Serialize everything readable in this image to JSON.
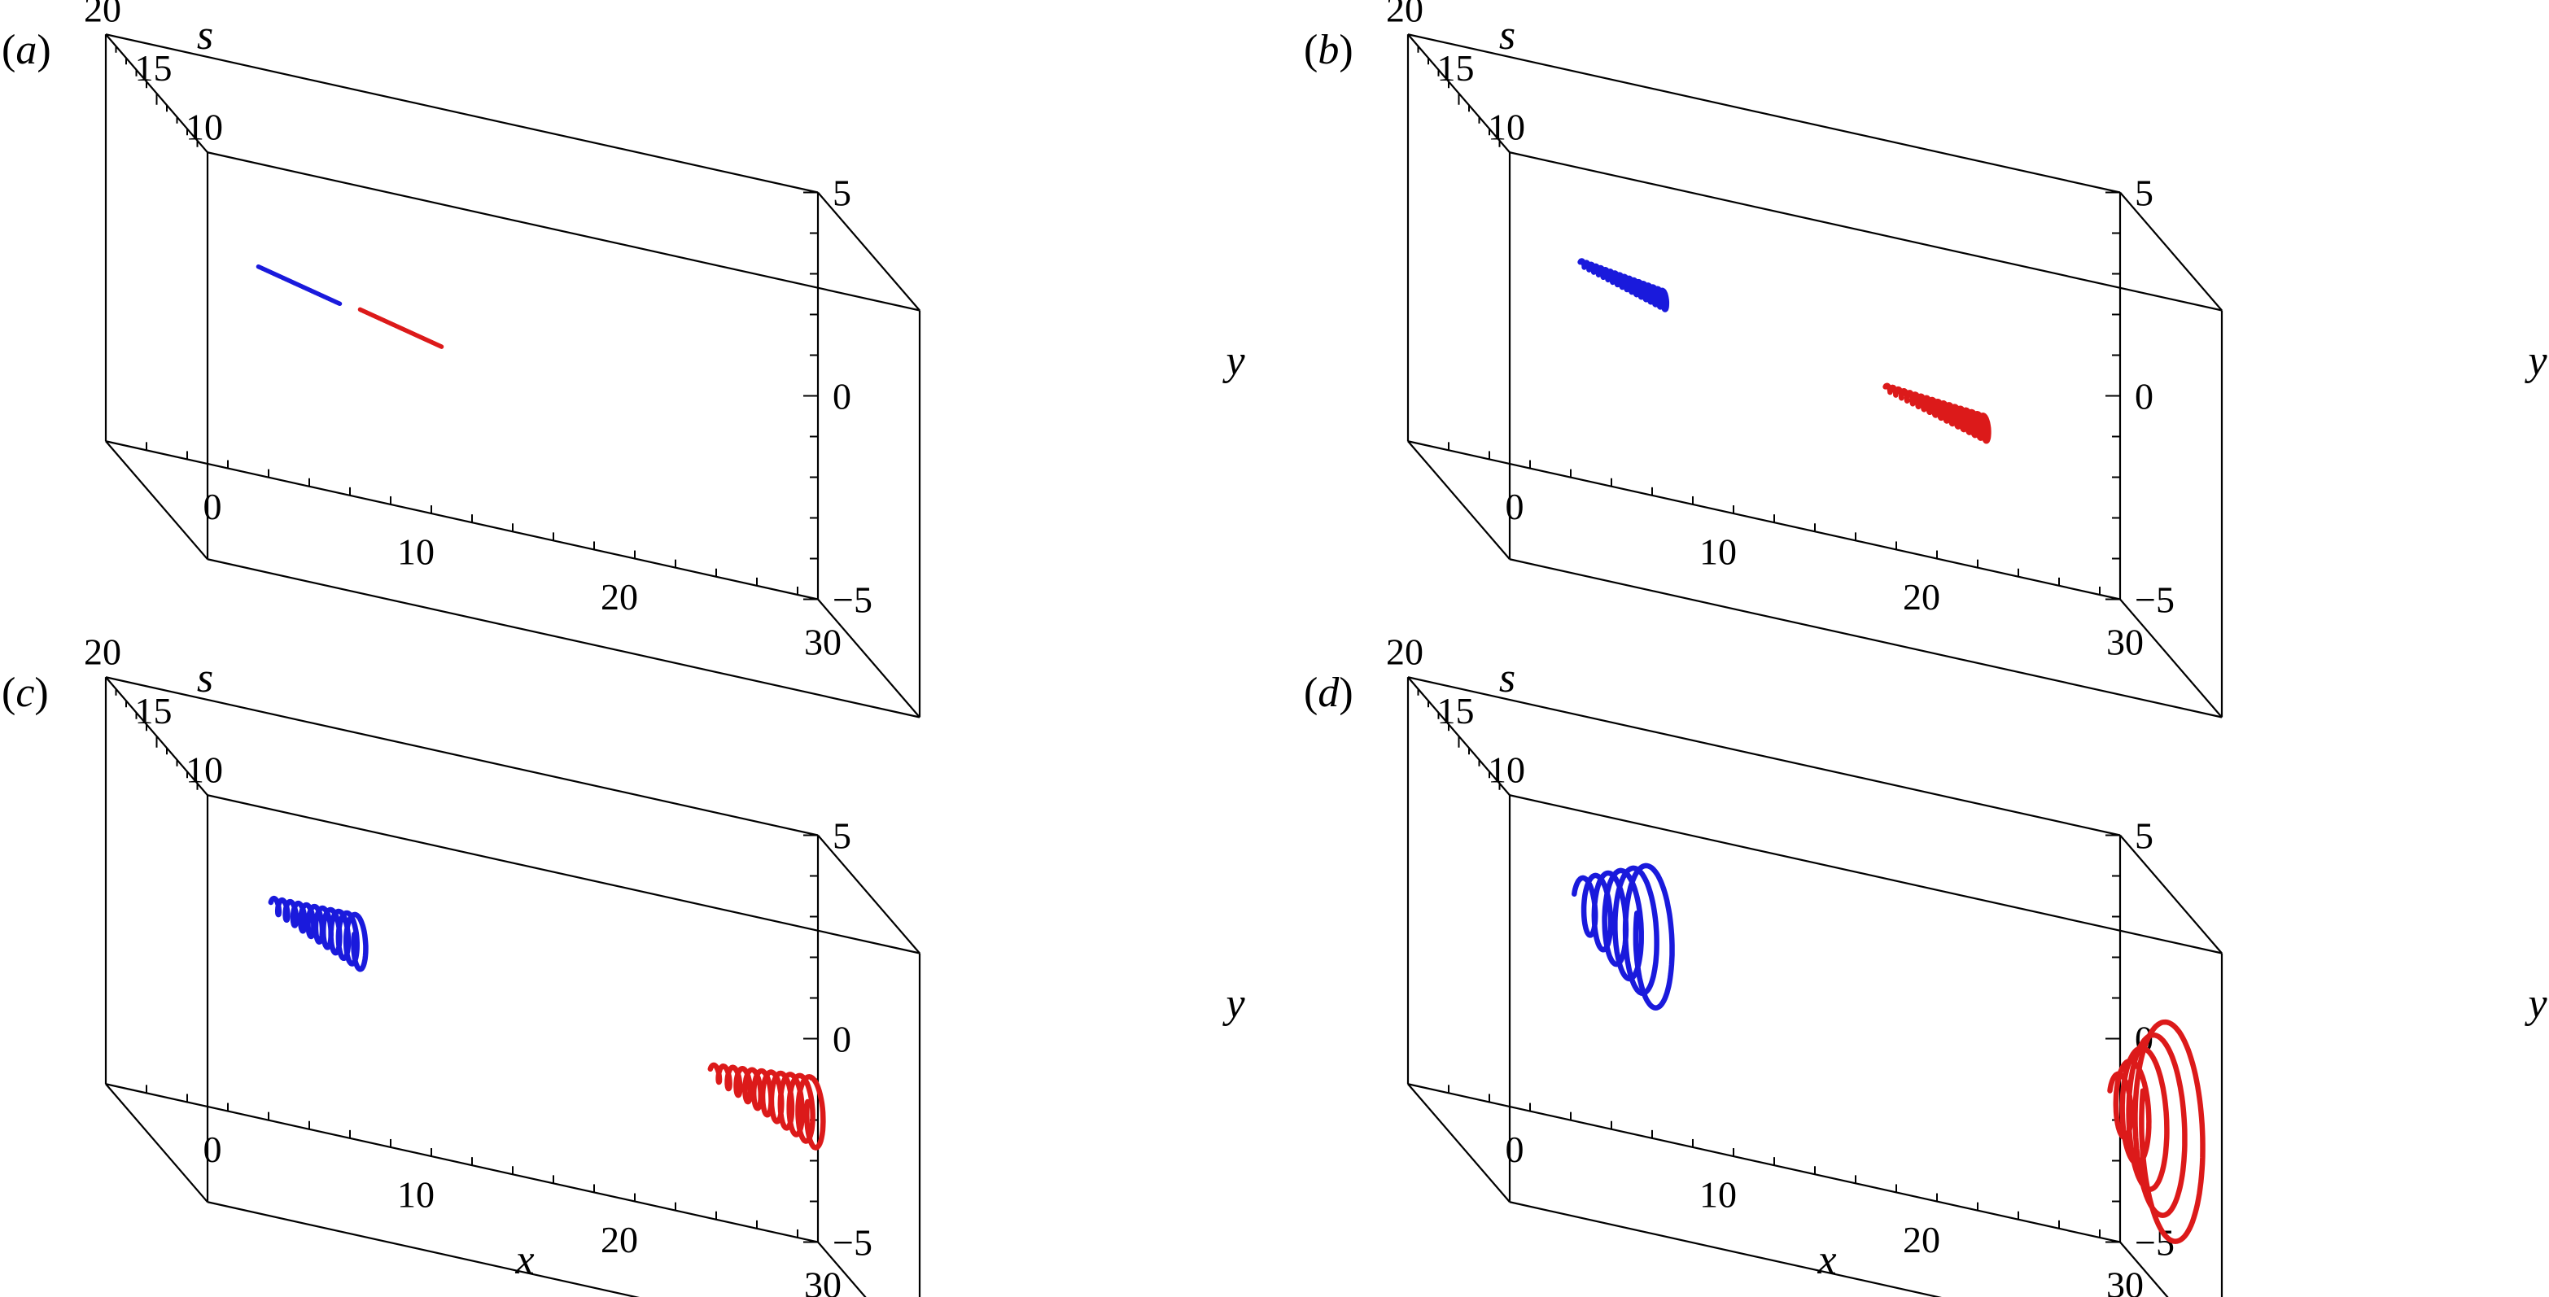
{
  "chart_data": [
    {
      "type": "line",
      "panel_label": "(a)",
      "axes": {
        "x": {
          "label": "",
          "range": [
            -5,
            30
          ],
          "ticks": [
            "0",
            "10",
            "20",
            "30"
          ]
        },
        "y": {
          "label": "y",
          "range": [
            -5,
            5
          ],
          "ticks": [
            "5",
            "0",
            "−5"
          ]
        },
        "s": {
          "label": "s",
          "range": [
            10,
            20
          ],
          "ticks": [
            "20",
            "15",
            "10"
          ]
        }
      },
      "series": [
        {
          "color": "#1a1adc",
          "start": {
            "x": -1.5,
            "s": 12.0,
            "y": 2.0
          },
          "end": {
            "x": 1.5,
            "s": 10.0,
            "y": 2.0
          },
          "radius_start": 0.0,
          "radius_end": 0.0,
          "turns": 0
        },
        {
          "color": "#dc1a1a",
          "start": {
            "x": 3.5,
            "s": 12.0,
            "y": 1.5
          },
          "end": {
            "x": 6.5,
            "s": 10.0,
            "y": 1.5
          },
          "radius_start": 0.0,
          "radius_end": 0.0,
          "turns": 0
        }
      ]
    },
    {
      "type": "line",
      "panel_label": "(b)",
      "axes": {
        "x": {
          "label": "",
          "range": [
            -5,
            30
          ],
          "ticks": [
            "0",
            "10",
            "20",
            "30"
          ]
        },
        "y": {
          "label": "y",
          "range": [
            -5,
            5
          ],
          "ticks": [
            "5",
            "0",
            "−5"
          ]
        },
        "s": {
          "label": "s",
          "range": [
            10,
            20
          ],
          "ticks": [
            "20",
            "15",
            "10"
          ]
        }
      },
      "series": [
        {
          "color": "#1a1adc",
          "start": {
            "x": -0.5,
            "s": 12.0,
            "y": 2.2
          },
          "end": {
            "x": 2.7,
            "s": 10.0,
            "y": 2.2
          },
          "radius_start": 0.06,
          "radius_end": 0.22,
          "turns": 18
        },
        {
          "color": "#dc1a1a",
          "start": {
            "x": 14.5,
            "s": 12.0,
            "y": 0.8
          },
          "end": {
            "x": 18.5,
            "s": 10.0,
            "y": 0.8
          },
          "radius_start": 0.06,
          "radius_end": 0.3,
          "turns": 18
        }
      ]
    },
    {
      "type": "line",
      "panel_label": "(c)",
      "axes": {
        "x": {
          "label": "x",
          "range": [
            -5,
            30
          ],
          "ticks": [
            "0",
            "10",
            "20",
            "30"
          ]
        },
        "y": {
          "label": "y",
          "range": [
            -5,
            5
          ],
          "ticks": [
            "5",
            "0",
            "−5"
          ]
        },
        "s": {
          "label": "s",
          "range": [
            10,
            20
          ],
          "ticks": [
            "20",
            "15",
            "10"
          ]
        }
      },
      "series": [
        {
          "color": "#1a1adc",
          "start": {
            "x": -0.8,
            "s": 12.0,
            "y": 2.2
          },
          "end": {
            "x": 2.6,
            "s": 10.0,
            "y": 2.2
          },
          "radius_start": 0.15,
          "radius_end": 0.65,
          "turns": 11
        },
        {
          "color": "#dc1a1a",
          "start": {
            "x": 20.8,
            "s": 12.0,
            "y": 0.5
          },
          "end": {
            "x": 25.0,
            "s": 10.0,
            "y": 0.5
          },
          "radius_start": 0.15,
          "radius_end": 0.85,
          "turns": 11
        }
      ]
    },
    {
      "type": "line",
      "panel_label": "(d)",
      "axes": {
        "x": {
          "label": "x",
          "range": [
            -5,
            30
          ],
          "ticks": [
            "0",
            "10",
            "20",
            "30"
          ]
        },
        "y": {
          "label": "y",
          "range": [
            -5,
            5
          ],
          "ticks": [
            "5",
            "0",
            "−5"
          ]
        },
        "s": {
          "label": "s",
          "range": [
            10,
            20
          ],
          "ticks": [
            "20",
            "15",
            "10"
          ]
        }
      },
      "series": [
        {
          "color": "#1a1adc",
          "start": {
            "x": -0.5,
            "s": 12.0,
            "y": 2.3
          },
          "end": {
            "x": 2.3,
            "s": 10.0,
            "y": 2.3
          },
          "radius_start": 0.55,
          "radius_end": 1.75,
          "turns": 6
        },
        {
          "color": "#dc1a1a",
          "start": {
            "x": 25.8,
            "s": 12.0,
            "y": 0.4
          },
          "end": {
            "x": 27.8,
            "s": 10.0,
            "y": 0.4
          },
          "radius_start": 0.5,
          "radius_end": 2.8,
          "turns": 5
        }
      ]
    }
  ]
}
